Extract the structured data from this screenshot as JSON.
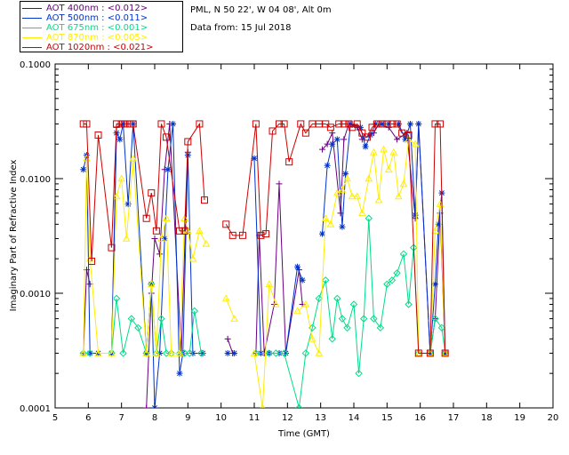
{
  "header": {
    "site": "PML, N 50 22', W 04 08', Alt 0m",
    "date": "Data from: 15 Jul 2018"
  },
  "legend": [
    {
      "label": "AOT  400nm : <0.012>",
      "color": "#6a0080"
    },
    {
      "label": "AOT  500nm : <0.011>",
      "color": "#0033cc"
    },
    {
      "label": "AOT  675nm : <0.001>",
      "color": "#00dd88"
    },
    {
      "label": "AOT  870nm : <0.005>",
      "color": "#ffee00"
    },
    {
      "label": "AOT 1020nm : <0.021>",
      "color": "#cc0000"
    }
  ],
  "chart_data": {
    "type": "line",
    "xlabel": "Time (GMT)",
    "ylabel": "Imaginary Part of Refractive Index",
    "xlim": [
      5,
      20
    ],
    "ylim": [
      0.0001,
      0.1
    ],
    "yscale": "log",
    "xticks": [
      "5",
      "6",
      "7",
      "8",
      "9",
      "10",
      "11",
      "12",
      "13",
      "14",
      "15",
      "16",
      "17",
      "18",
      "19",
      "20"
    ],
    "yticks": [
      "0.0001",
      "0.0010",
      "0.0100",
      "0.1000"
    ],
    "series": [
      {
        "name": "AOT  400nm : <0.012>",
        "color": "#6a0080",
        "marker": "plus",
        "points": [
          [
            5.85,
            0.0003
          ],
          [
            5.95,
            0.0016
          ],
          [
            6.05,
            0.0012
          ],
          [
            6.7,
            0.0003
          ],
          [
            6.85,
            0.028
          ],
          [
            7.05,
            0.03
          ],
          [
            7.2,
            0.03
          ],
          [
            7.75,
            0.0001
          ],
          [
            7.9,
            0.001
          ],
          [
            8.0,
            0.003
          ],
          [
            8.15,
            0.0022
          ],
          [
            8.3,
            0.012
          ],
          [
            8.45,
            0.03
          ],
          [
            8.8,
            0.0003
          ],
          [
            9.0,
            0.017
          ],
          [
            10.2,
            0.0004
          ],
          [
            10.35,
            0.0003
          ],
          [
            11.05,
            0.0003
          ],
          [
            11.15,
            0.0032
          ],
          [
            11.3,
            0.0003
          ],
          [
            11.6,
            0.0008
          ],
          [
            11.75,
            0.009
          ],
          [
            11.95,
            0.0003
          ],
          [
            12.35,
            0.0016
          ],
          [
            12.45,
            0.0008
          ],
          [
            13.05,
            0.018
          ],
          [
            13.2,
            0.02
          ],
          [
            13.35,
            0.025
          ],
          [
            13.6,
            0.005
          ],
          [
            13.7,
            0.022
          ],
          [
            13.85,
            0.03
          ],
          [
            14.1,
            0.028
          ],
          [
            14.25,
            0.022
          ],
          [
            14.6,
            0.025
          ],
          [
            14.75,
            0.03
          ],
          [
            15.05,
            0.028
          ],
          [
            15.3,
            0.022
          ],
          [
            15.6,
            0.025
          ],
          [
            15.85,
            0.0045
          ],
          [
            15.95,
            0.03
          ],
          [
            16.3,
            0.0003
          ],
          [
            16.45,
            0.0006
          ],
          [
            16.6,
            0.005
          ],
          [
            16.75,
            0.0003
          ]
        ]
      },
      {
        "name": "AOT  500nm : <0.011>",
        "color": "#0033cc",
        "marker": "star",
        "points": [
          [
            5.85,
            0.012
          ],
          [
            5.95,
            0.016
          ],
          [
            6.05,
            0.0003
          ],
          [
            6.3,
            0.0003
          ],
          [
            6.7,
            0.0003
          ],
          [
            6.85,
            0.025
          ],
          [
            6.95,
            0.022
          ],
          [
            7.05,
            0.03
          ],
          [
            7.2,
            0.006
          ],
          [
            7.35,
            0.03
          ],
          [
            7.75,
            0.0003
          ],
          [
            7.9,
            0.0012
          ],
          [
            8.0,
            0.0001
          ],
          [
            8.15,
            0.0003
          ],
          [
            8.3,
            0.003
          ],
          [
            8.4,
            0.012
          ],
          [
            8.55,
            0.03
          ],
          [
            8.75,
            0.0002
          ],
          [
            8.85,
            0.0003
          ],
          [
            9.0,
            0.016
          ],
          [
            9.15,
            0.0003
          ],
          [
            9.45,
            0.0003
          ],
          [
            10.2,
            0.0003
          ],
          [
            10.4,
            0.0003
          ],
          [
            11.0,
            0.015
          ],
          [
            11.2,
            0.0003
          ],
          [
            11.45,
            0.0003
          ],
          [
            11.75,
            0.0003
          ],
          [
            11.95,
            0.0003
          ],
          [
            12.3,
            0.0017
          ],
          [
            12.45,
            0.0013
          ],
          [
            13.05,
            0.0033
          ],
          [
            13.2,
            0.013
          ],
          [
            13.35,
            0.02
          ],
          [
            13.5,
            0.022
          ],
          [
            13.65,
            0.0038
          ],
          [
            13.75,
            0.011
          ],
          [
            13.9,
            0.03
          ],
          [
            14.2,
            0.028
          ],
          [
            14.35,
            0.019
          ],
          [
            14.5,
            0.024
          ],
          [
            14.65,
            0.03
          ],
          [
            14.85,
            0.03
          ],
          [
            15.05,
            0.03
          ],
          [
            15.35,
            0.03
          ],
          [
            15.55,
            0.022
          ],
          [
            15.7,
            0.03
          ],
          [
            15.85,
            0.0048
          ],
          [
            15.95,
            0.03
          ],
          [
            16.3,
            0.0003
          ],
          [
            16.45,
            0.0012
          ],
          [
            16.55,
            0.004
          ],
          [
            16.65,
            0.0075
          ],
          [
            16.75,
            0.0003
          ]
        ]
      },
      {
        "name": "AOT  675nm : <0.001>",
        "color": "#00dd88",
        "marker": "diamond",
        "points": [
          [
            5.85,
            0.0003
          ],
          [
            6.05,
            0.0003
          ],
          [
            6.7,
            0.0003
          ],
          [
            6.85,
            0.0009
          ],
          [
            7.05,
            0.0003
          ],
          [
            7.3,
            0.0006
          ],
          [
            7.5,
            0.0005
          ],
          [
            7.75,
            0.0003
          ],
          [
            7.9,
            0.0012
          ],
          [
            8.05,
            0.0003
          ],
          [
            8.2,
            0.0006
          ],
          [
            8.35,
            0.0003
          ],
          [
            8.5,
            0.0003
          ],
          [
            8.75,
            0.0003
          ],
          [
            8.9,
            0.0003
          ],
          [
            9.05,
            0.0003
          ],
          [
            9.2,
            0.0007
          ],
          [
            9.4,
            0.0003
          ],
          [
            11.05,
            0.0003
          ],
          [
            11.45,
            0.0003
          ],
          [
            11.65,
            0.0003
          ],
          [
            11.9,
            0.0003
          ],
          [
            12.35,
            0.0001
          ],
          [
            12.55,
            0.0003
          ],
          [
            12.75,
            0.0005
          ],
          [
            12.95,
            0.0009
          ],
          [
            13.15,
            0.0013
          ],
          [
            13.35,
            0.0004
          ],
          [
            13.5,
            0.0009
          ],
          [
            13.65,
            0.0006
          ],
          [
            13.8,
            0.0005
          ],
          [
            14.0,
            0.0008
          ],
          [
            14.15,
            0.0002
          ],
          [
            14.3,
            0.0006
          ],
          [
            14.45,
            0.0045
          ],
          [
            14.6,
            0.0006
          ],
          [
            14.8,
            0.0005
          ],
          [
            15.0,
            0.0012
          ],
          [
            15.15,
            0.0013
          ],
          [
            15.3,
            0.0015
          ],
          [
            15.5,
            0.0022
          ],
          [
            15.65,
            0.0008
          ],
          [
            15.8,
            0.0025
          ],
          [
            15.95,
            0.0003
          ],
          [
            16.3,
            0.0003
          ],
          [
            16.45,
            0.0006
          ],
          [
            16.65,
            0.0005
          ],
          [
            16.75,
            0.0003
          ]
        ]
      },
      {
        "name": "AOT  870nm : <0.005>",
        "color": "#ffee00",
        "marker": "triangle",
        "points": [
          [
            5.85,
            0.0003
          ],
          [
            5.95,
            0.015
          ],
          [
            6.05,
            0.002
          ],
          [
            6.3,
            0.0003
          ],
          [
            6.7,
            0.0003
          ],
          [
            6.85,
            0.007
          ],
          [
            7.0,
            0.01
          ],
          [
            7.15,
            0.003
          ],
          [
            7.35,
            0.015
          ],
          [
            7.75,
            0.0003
          ],
          [
            7.9,
            0.0012
          ],
          [
            8.05,
            0.0003
          ],
          [
            8.2,
            0.003
          ],
          [
            8.35,
            0.0045
          ],
          [
            8.5,
            0.0003
          ],
          [
            8.75,
            0.0003
          ],
          [
            8.9,
            0.0045
          ],
          [
            9.0,
            0.0035
          ],
          [
            9.15,
            0.002
          ],
          [
            9.35,
            0.0035
          ],
          [
            9.55,
            0.0027
          ],
          [
            10.15,
            0.0009
          ],
          [
            10.4,
            0.0006
          ],
          [
            11.0,
            0.0003
          ],
          [
            11.25,
            0.0001
          ],
          [
            11.45,
            0.0012
          ],
          [
            11.65,
            0.0008
          ],
          [
            12.3,
            0.0007
          ],
          [
            12.55,
            0.0008
          ],
          [
            12.75,
            0.0004
          ],
          [
            12.95,
            0.0003
          ],
          [
            13.15,
            0.0045
          ],
          [
            13.3,
            0.004
          ],
          [
            13.5,
            0.0075
          ],
          [
            13.65,
            0.008
          ],
          [
            13.8,
            0.01
          ],
          [
            13.95,
            0.007
          ],
          [
            14.1,
            0.007
          ],
          [
            14.25,
            0.005
          ],
          [
            14.45,
            0.01
          ],
          [
            14.6,
            0.017
          ],
          [
            14.75,
            0.0065
          ],
          [
            14.9,
            0.018
          ],
          [
            15.05,
            0.012
          ],
          [
            15.2,
            0.017
          ],
          [
            15.35,
            0.007
          ],
          [
            15.5,
            0.009
          ],
          [
            15.65,
            0.022
          ],
          [
            15.85,
            0.02
          ],
          [
            15.95,
            0.0003
          ],
          [
            16.3,
            0.0003
          ],
          [
            16.45,
            0.0035
          ],
          [
            16.6,
            0.006
          ],
          [
            16.75,
            0.0003
          ]
        ]
      },
      {
        "name": "AOT 1020nm : <0.021>",
        "color": "#cc0000",
        "marker": "square",
        "points": [
          [
            5.85,
            0.03
          ],
          [
            5.95,
            0.03
          ],
          [
            6.1,
            0.0019
          ],
          [
            6.3,
            0.024
          ],
          [
            6.7,
            0.0025
          ],
          [
            6.85,
            0.03
          ],
          [
            7.0,
            0.03
          ],
          [
            7.1,
            0.03
          ],
          [
            7.25,
            0.03
          ],
          [
            7.35,
            0.03
          ],
          [
            7.75,
            0.0045
          ],
          [
            7.9,
            0.0075
          ],
          [
            8.05,
            0.0035
          ],
          [
            8.2,
            0.03
          ],
          [
            8.35,
            0.023
          ],
          [
            8.75,
            0.0035
          ],
          [
            8.9,
            0.0035
          ],
          [
            9.0,
            0.021
          ],
          [
            9.35,
            0.03
          ],
          [
            9.5,
            0.0065
          ],
          [
            10.15,
            0.004
          ],
          [
            10.35,
            0.0032
          ],
          [
            10.65,
            0.0032
          ],
          [
            11.05,
            0.03
          ],
          [
            11.2,
            0.0032
          ],
          [
            11.35,
            0.0033
          ],
          [
            11.55,
            0.026
          ],
          [
            11.75,
            0.03
          ],
          [
            11.9,
            0.03
          ],
          [
            12.05,
            0.014
          ],
          [
            12.4,
            0.03
          ],
          [
            12.55,
            0.025
          ],
          [
            12.75,
            0.03
          ],
          [
            12.95,
            0.03
          ],
          [
            13.15,
            0.03
          ],
          [
            13.3,
            0.028
          ],
          [
            13.55,
            0.03
          ],
          [
            13.7,
            0.03
          ],
          [
            13.85,
            0.03
          ],
          [
            13.95,
            0.028
          ],
          [
            14.1,
            0.03
          ],
          [
            14.25,
            0.025
          ],
          [
            14.4,
            0.023
          ],
          [
            14.55,
            0.028
          ],
          [
            14.7,
            0.03
          ],
          [
            14.85,
            0.03
          ],
          [
            15.0,
            0.03
          ],
          [
            15.15,
            0.03
          ],
          [
            15.3,
            0.03
          ],
          [
            15.45,
            0.025
          ],
          [
            15.65,
            0.024
          ],
          [
            15.95,
            0.0003
          ],
          [
            16.3,
            0.0003
          ],
          [
            16.45,
            0.03
          ],
          [
            16.6,
            0.03
          ],
          [
            16.75,
            0.0003
          ]
        ]
      }
    ]
  }
}
